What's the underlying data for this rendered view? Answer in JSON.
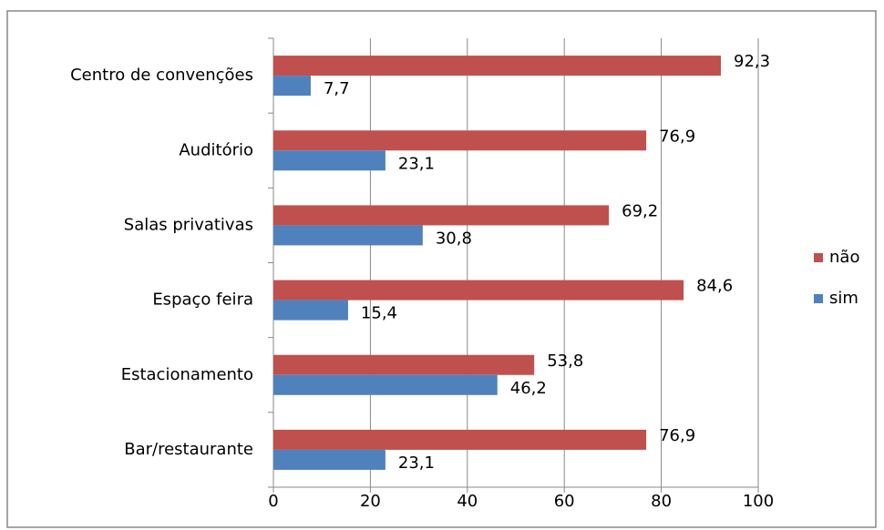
{
  "chart_data": {
    "type": "hbar",
    "categories": [
      "Centro de convenções",
      "Auditório",
      "Salas privativas",
      "Espaço feira",
      "Estacionamento",
      "Bar/restaurante"
    ],
    "series": [
      {
        "name": "não",
        "color": "#c0504d",
        "values": [
          92.3,
          76.9,
          69.2,
          84.6,
          53.8,
          76.9
        ],
        "value_labels": [
          "92,3",
          "76,9",
          "69,2",
          "84,6",
          "53,8",
          "76,9"
        ]
      },
      {
        "name": "sim",
        "color": "#4f81bd",
        "values": [
          7.7,
          23.1,
          30.8,
          15.4,
          46.2,
          23.1
        ],
        "value_labels": [
          "7,7",
          "23,1",
          "30,8",
          "15,4",
          "46,2",
          "23,1"
        ]
      }
    ],
    "xlim": [
      0,
      100
    ],
    "xticks": [
      0,
      20,
      40,
      60,
      80,
      100
    ],
    "grid": true,
    "legend": "right"
  }
}
